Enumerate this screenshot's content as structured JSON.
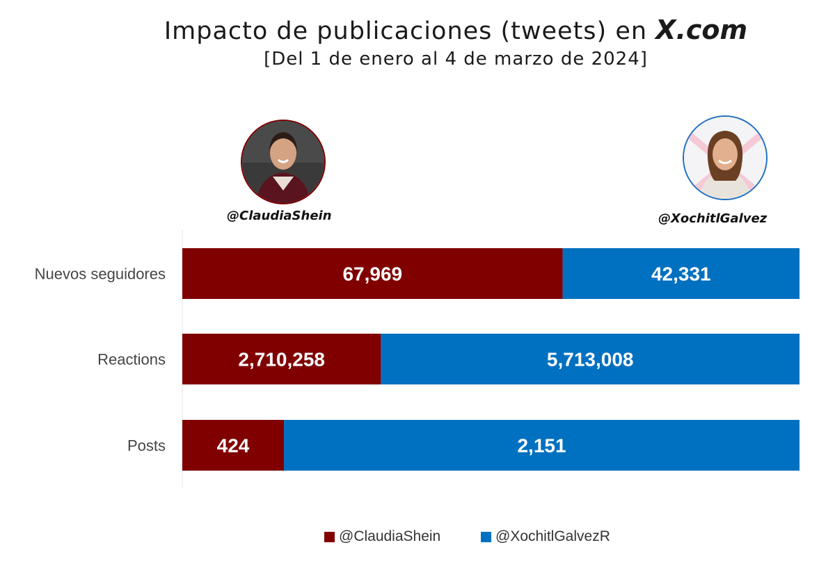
{
  "header": {
    "title_main": "Impacto de publicaciones (tweets) en ",
    "title_brand": "X.com",
    "subtitle": "[Del 1 de enero al 4 de marzo de 2024]"
  },
  "profiles": {
    "left_handle": "@ClaudiaShein",
    "right_handle": "@XochitlGalvez"
  },
  "colors": {
    "shein": "#800000",
    "galvez": "#0070C0"
  },
  "legend": {
    "shein_label": "@ClaudiaShein",
    "galvez_label": "@XochitlGalvezR"
  },
  "chart_data": {
    "type": "bar",
    "orientation": "horizontal",
    "stacked": "100%",
    "title": "Impacto de publicaciones (tweets) en X.com",
    "subtitle": "[Del 1 de enero al 4 de marzo de 2024]",
    "categories": [
      "Nuevos seguidores",
      "Reactions",
      "Posts"
    ],
    "series": [
      {
        "name": "@ClaudiaShein",
        "values": [
          67969,
          2710258,
          424
        ],
        "labels": [
          "67,969",
          "2,710,258",
          "424"
        ]
      },
      {
        "name": "@XochitlGalvezR",
        "values": [
          42331,
          5713008,
          2151
        ],
        "labels": [
          "42,331",
          "5,713,008",
          "2,151"
        ]
      }
    ],
    "grid": false,
    "legend_position": "bottom"
  }
}
